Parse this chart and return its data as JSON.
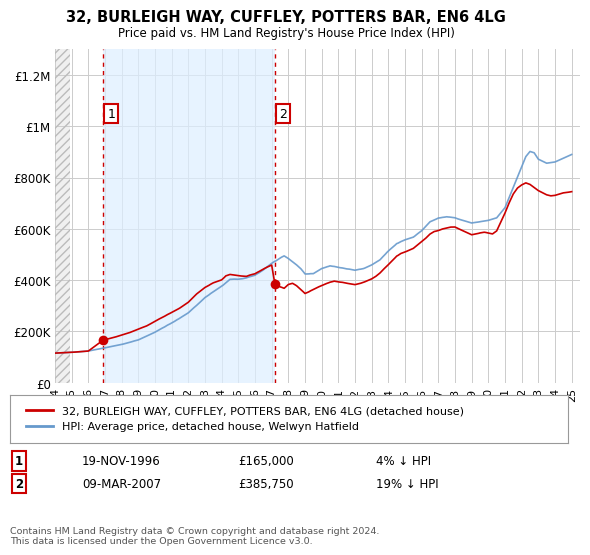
{
  "title": "32, BURLEIGH WAY, CUFFLEY, POTTERS BAR, EN6 4LG",
  "subtitle": "Price paid vs. HM Land Registry's House Price Index (HPI)",
  "ylim": [
    0,
    1300000
  ],
  "xlim_start": 1994.0,
  "xlim_end": 2025.5,
  "yticks": [
    0,
    200000,
    400000,
    600000,
    800000,
    1000000,
    1200000
  ],
  "ytick_labels": [
    "£0",
    "£200K",
    "£400K",
    "£600K",
    "£800K",
    "£1M",
    "£1.2M"
  ],
  "xticks": [
    1994,
    1995,
    1996,
    1997,
    1998,
    1999,
    2000,
    2001,
    2002,
    2003,
    2004,
    2005,
    2006,
    2007,
    2008,
    2009,
    2010,
    2011,
    2012,
    2013,
    2014,
    2015,
    2016,
    2017,
    2018,
    2019,
    2020,
    2021,
    2022,
    2023,
    2024,
    2025
  ],
  "hatch_region_end": 1994.9,
  "blue_region_start": 1996.88,
  "blue_region_end": 2007.18,
  "sale1_x": 1996.88,
  "sale1_y": 165000,
  "sale1_label": "1",
  "sale2_x": 2007.18,
  "sale2_y": 385750,
  "sale2_label": "2",
  "sale_color": "#cc0000",
  "hpi_color": "#6699cc",
  "blue_fill_color": "#ddeeff",
  "bg_color": "#ffffff",
  "grid_color": "#cccccc",
  "legend_label_red": "32, BURLEIGH WAY, CUFFLEY, POTTERS BAR, EN6 4LG (detached house)",
  "legend_label_blue": "HPI: Average price, detached house, Welwyn Hatfield",
  "footer": "Contains HM Land Registry data © Crown copyright and database right 2024.\nThis data is licensed under the Open Government Licence v3.0.",
  "sale1_info": [
    "19-NOV-1996",
    "£165,000",
    "4% ↓ HPI"
  ],
  "sale2_info": [
    "09-MAR-2007",
    "£385,750",
    "19% ↓ HPI"
  ]
}
